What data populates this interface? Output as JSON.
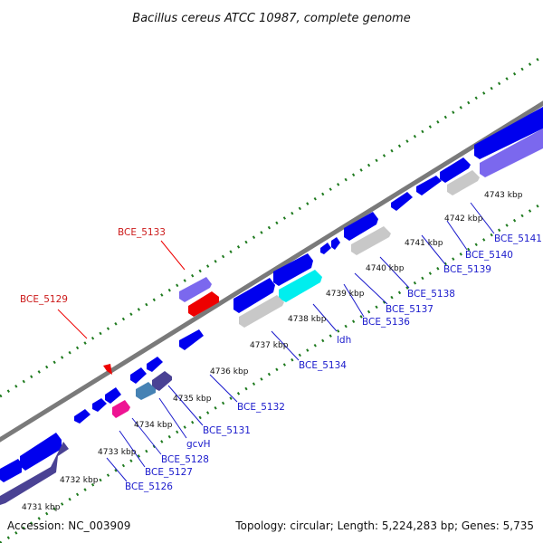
{
  "title": "Bacillus cereus ATCC 10987, complete genome",
  "footer": {
    "accession": "Accession: NC_003909",
    "summary": "Topology: circular; Length: 5,224,283 bp; Genes: 5,735"
  },
  "kbp_ticks": [
    "4731 kbp",
    "4732 kbp",
    "4733 kbp",
    "4734 kbp",
    "4735 kbp",
    "4736 kbp",
    "4737 kbp",
    "4738 kbp",
    "4739 kbp",
    "4740 kbp",
    "4741 kbp",
    "4742 kbp",
    "4743 kbp"
  ],
  "gene_labels": {
    "bce_5126": "BCE_5126",
    "bce_5127": "BCE_5127",
    "bce_5128": "BCE_5128",
    "gcvh": "gcvH",
    "bce_5131": "BCE_5131",
    "bce_5132": "BCE_5132",
    "bce_5134": "BCE_5134",
    "ldh": "ldh",
    "bce_5136": "BCE_5136",
    "bce_5137": "BCE_5137",
    "bce_5138": "BCE_5138",
    "bce_5139": "BCE_5139",
    "bce_5140": "BCE_5140",
    "bce_5141": "BCE_5141",
    "bce_5129": "BCE_5129",
    "bce_5133": "BCE_5133"
  },
  "colors": {
    "forward_cds": "#0000ee",
    "reverse_cds": "#4a4294",
    "highlight_red": "#ee0000",
    "highlight_cyan": "#00eeee",
    "pseudo_gray": "#c8c8c8",
    "steel": "#4682b4",
    "magenta": "#ee1493",
    "slate": "#7b68ee",
    "backbone": "#8c8c8c",
    "gc_dots": "#1e7a1e"
  }
}
